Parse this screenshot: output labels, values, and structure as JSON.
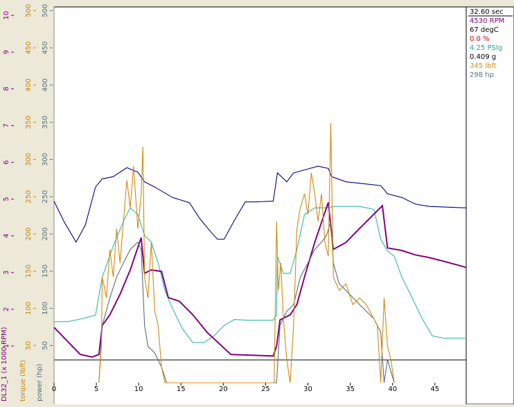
{
  "chart_data": {
    "type": "line",
    "xlim": [
      0,
      48.7
    ],
    "xticks": [
      0,
      5,
      10,
      15,
      20,
      25,
      30,
      35,
      40,
      45
    ],
    "ylabel": "DL32_1 (x 1000 RPM)",
    "ylim": [
      0,
      10.23
    ],
    "yticks": [
      1,
      2,
      3,
      4,
      5,
      6,
      7,
      8,
      9,
      10
    ],
    "ycolor": "#800080",
    "y2label": "torque (lbft)",
    "y2lim": [
      0,
      505
    ],
    "y2ticks": [
      50,
      100,
      150,
      200,
      250,
      300,
      350,
      400,
      450,
      500
    ],
    "y2color": "#c8860a",
    "y3label": "power (hp)",
    "y3lim": [
      0,
      505
    ],
    "y3ticks": [
      50,
      100,
      150,
      200,
      250,
      300,
      350,
      400,
      450,
      500
    ],
    "y3color": "#5a6a78",
    "grid": false,
    "readouts": [
      {
        "text": "32.60 sec",
        "color": "#000000"
      },
      {
        "text": "4530 RPM",
        "color": "#800080"
      },
      {
        "text": "67 degC",
        "color": "#000000"
      },
      {
        "text": "0.0 %",
        "color": "#e00000"
      },
      {
        "text": "4.25 PSIg",
        "color": "#20a898"
      },
      {
        "text": "0.409 g",
        "color": "#000000"
      },
      {
        "text": "345 lbft",
        "color": "#d08a10"
      },
      {
        "text": "298 hp",
        "color": "#4a7a88"
      }
    ],
    "series": [
      {
        "color": "#000080",
        "axis": "y2",
        "x": [
          0,
          1.2,
          2.6,
          3.7,
          4.9,
          5.7,
          7.0,
          8.6,
          9.9,
          10.7,
          11.9,
          14.0,
          16.0,
          17.2,
          18.5,
          19.3,
          20.1,
          21.3,
          22.6,
          23.8,
          25.9,
          26.4,
          27.5,
          28.3,
          29.6,
          31.2,
          32.4,
          32.8,
          34.5,
          36.1,
          38.6,
          39.4,
          41.1,
          42.7,
          44.3,
          48.7
        ],
        "values": [
          244,
          216,
          189,
          212,
          263,
          274,
          277,
          289,
          283,
          270,
          263,
          249,
          242,
          221,
          203,
          193,
          193,
          218,
          243,
          243,
          244,
          282,
          270,
          282,
          286,
          291,
          288,
          277,
          270,
          268,
          265,
          254,
          249,
          240,
          237,
          235
        ]
      },
      {
        "color": "#30b8a8",
        "axis": "y2",
        "x": [
          0,
          1.6,
          3.3,
          4.9,
          5.7,
          7.0,
          8.2,
          9.0,
          9.9,
          10.7,
          11.5,
          12.3,
          13.1,
          14.0,
          15.2,
          16.4,
          17.7,
          18.9,
          20.1,
          21.3,
          23.0,
          25.9,
          26.3,
          26.4,
          27.1,
          27.9,
          28.7,
          29.6,
          30.8,
          32.0,
          33.3,
          36.1,
          37.8,
          38.6,
          39.4,
          40.2,
          41.1,
          41.9,
          42.7,
          43.5,
          44.7,
          46.0,
          48.7
        ],
        "values": [
          82,
          82,
          86,
          91,
          142,
          184,
          217,
          235,
          226,
          198,
          189,
          161,
          124,
          100,
          72,
          54,
          54,
          63,
          77,
          85,
          84,
          84,
          91,
          170,
          147,
          147,
          179,
          226,
          235,
          235,
          237,
          237,
          233,
          193,
          177,
          170,
          142,
          124,
          105,
          86,
          63,
          60,
          60
        ]
      },
      {
        "color": "#800080",
        "axis": "y",
        "x": [
          0,
          3.1,
          4.5,
          5.3,
          5.7,
          6.6,
          7.8,
          9.0,
          10.3,
          10.7,
          11.5,
          12.7,
          13.5,
          14.8,
          16.4,
          18.1,
          20.9,
          25.9,
          26.3,
          26.7,
          27.9,
          28.7,
          29.6,
          30.8,
          32.4,
          33.0,
          34.5,
          36.1,
          38.8,
          39.4,
          41.1,
          42.7,
          44.3,
          46.0,
          48.7
        ],
        "values": [
          1.51,
          0.77,
          0.7,
          0.77,
          1.56,
          1.85,
          2.41,
          3.07,
          3.95,
          2.98,
          3.07,
          3.03,
          2.32,
          2.22,
          1.85,
          1.37,
          0.77,
          0.73,
          1.0,
          1.71,
          1.85,
          2.13,
          2.88,
          3.82,
          4.91,
          3.63,
          3.82,
          4.2,
          4.82,
          3.67,
          3.6,
          3.48,
          3.41,
          3.31,
          3.14
        ]
      },
      {
        "color": "#5a6a78",
        "axis": "y3",
        "x": [
          5.3,
          5.7,
          6.6,
          7.4,
          8.2,
          9.0,
          9.9,
          10.3,
          10.7,
          11.1,
          11.9,
          12.7,
          13.3,
          26.3,
          26.7,
          27.5,
          28.3,
          29.1,
          30.0,
          30.8,
          31.6,
          32.2,
          32.7,
          33.0,
          33.7,
          34.5,
          36.1,
          37.8,
          38.6,
          39.0,
          39.4,
          40.2
        ],
        "values": [
          0,
          77,
          114,
          142,
          161,
          179,
          189,
          179,
          77,
          49,
          40,
          21,
          0,
          0,
          77,
          96,
          105,
          142,
          161,
          179,
          189,
          198,
          217,
          161,
          133,
          124,
          105,
          86,
          68,
          0,
          31,
          0
        ]
      },
      {
        "color": "#d08a10",
        "axis": "y2",
        "x": [
          5.3,
          5.6,
          5.7,
          6.2,
          6.6,
          7.0,
          7.4,
          7.8,
          8.6,
          9.0,
          9.4,
          9.9,
          10.3,
          10.5,
          10.7,
          11.1,
          11.5,
          11.9,
          12.3,
          12.7,
          13.1,
          26.0,
          26.3,
          26.5,
          26.8,
          27.1,
          27.5,
          27.9,
          28.3,
          28.7,
          29.1,
          29.6,
          30.0,
          30.4,
          30.8,
          31.2,
          31.6,
          32.0,
          32.4,
          32.7,
          33.0,
          33.7,
          34.5,
          35.3,
          36.1,
          36.9,
          37.8,
          38.2,
          38.6,
          39.0,
          39.4,
          39.8,
          40.2
        ],
        "values": [
          0,
          49,
          142,
          114,
          179,
          142,
          207,
          161,
          272,
          235,
          291,
          207,
          254,
          317,
          142,
          114,
          189,
          96,
          77,
          21,
          0,
          0,
          217,
          124,
          161,
          86,
          31,
          0,
          77,
          207,
          235,
          254,
          226,
          282,
          254,
          217,
          254,
          189,
          170,
          349,
          142,
          124,
          133,
          105,
          114,
          105,
          86,
          77,
          0,
          114,
          49,
          31,
          0
        ]
      }
    ]
  }
}
